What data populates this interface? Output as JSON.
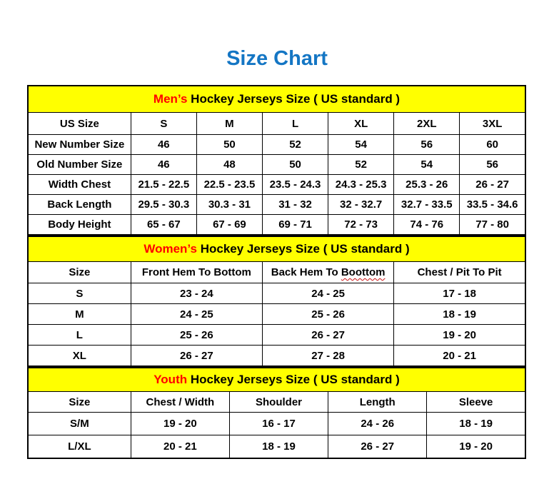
{
  "page": {
    "title": "Size Chart",
    "title_color": "#1476c4",
    "accent_color": "#ff0000",
    "section_header_bg": "#ffff00"
  },
  "tables": [
    {
      "id": "mens",
      "caption": {
        "accent": "Men’s",
        "rest": " Hockey Jerseys Size ( US standard )"
      },
      "columns": [
        "US Size",
        "S",
        "M",
        "L",
        "XL",
        "2XL",
        "3XL"
      ],
      "rows": [
        [
          "New Number Size",
          "46",
          "50",
          "52",
          "54",
          "56",
          "60"
        ],
        [
          "Old Number Size",
          "46",
          "48",
          "50",
          "52",
          "54",
          "56"
        ],
        [
          "Width Chest",
          "21.5 - 22.5",
          "22.5 - 23.5",
          "23.5 - 24.3",
          "24.3 - 25.3",
          "25.3 - 26",
          "26 - 27"
        ],
        [
          "Back Length",
          "29.5 - 30.3",
          "30.3 - 31",
          "31 - 32",
          "32 - 32.7",
          "32.7 - 33.5",
          "33.5 - 34.6"
        ],
        [
          "Body Height",
          "65 - 67",
          "67 - 69",
          "69 - 71",
          "72 - 73",
          "74 - 76",
          "77 - 80"
        ]
      ]
    },
    {
      "id": "womens",
      "caption": {
        "accent": "Women’s",
        "rest": " Hockey Jerseys Size ( US standard )"
      },
      "columns": [
        "Size",
        "Front Hem To Bottom",
        "Back Hem To Boottom",
        "Chest / Pit To Pit"
      ],
      "misspelled_column": {
        "index": 2,
        "prefix": "Back Hem To ",
        "word": "Boottom"
      },
      "rows": [
        [
          "S",
          "23 - 24",
          "24 - 25",
          "17 - 18"
        ],
        [
          "M",
          "24 - 25",
          "25 - 26",
          "18 - 19"
        ],
        [
          "L",
          "25 - 26",
          "26 - 27",
          "19 - 20"
        ],
        [
          "XL",
          "26 - 27",
          "27 - 28",
          "20 - 21"
        ]
      ]
    },
    {
      "id": "youth",
      "caption": {
        "accent": "Youth",
        "rest": " Hockey Jerseys Size ( US standard )"
      },
      "columns": [
        "Size",
        "Chest / Width",
        "Shoulder",
        "Length",
        "Sleeve"
      ],
      "rows": [
        [
          "S/M",
          "19 - 20",
          "16 - 17",
          "24 - 26",
          "18 - 19"
        ],
        [
          "L/XL",
          "20 - 21",
          "18 - 19",
          "26 - 27",
          "19 - 20"
        ]
      ]
    }
  ]
}
